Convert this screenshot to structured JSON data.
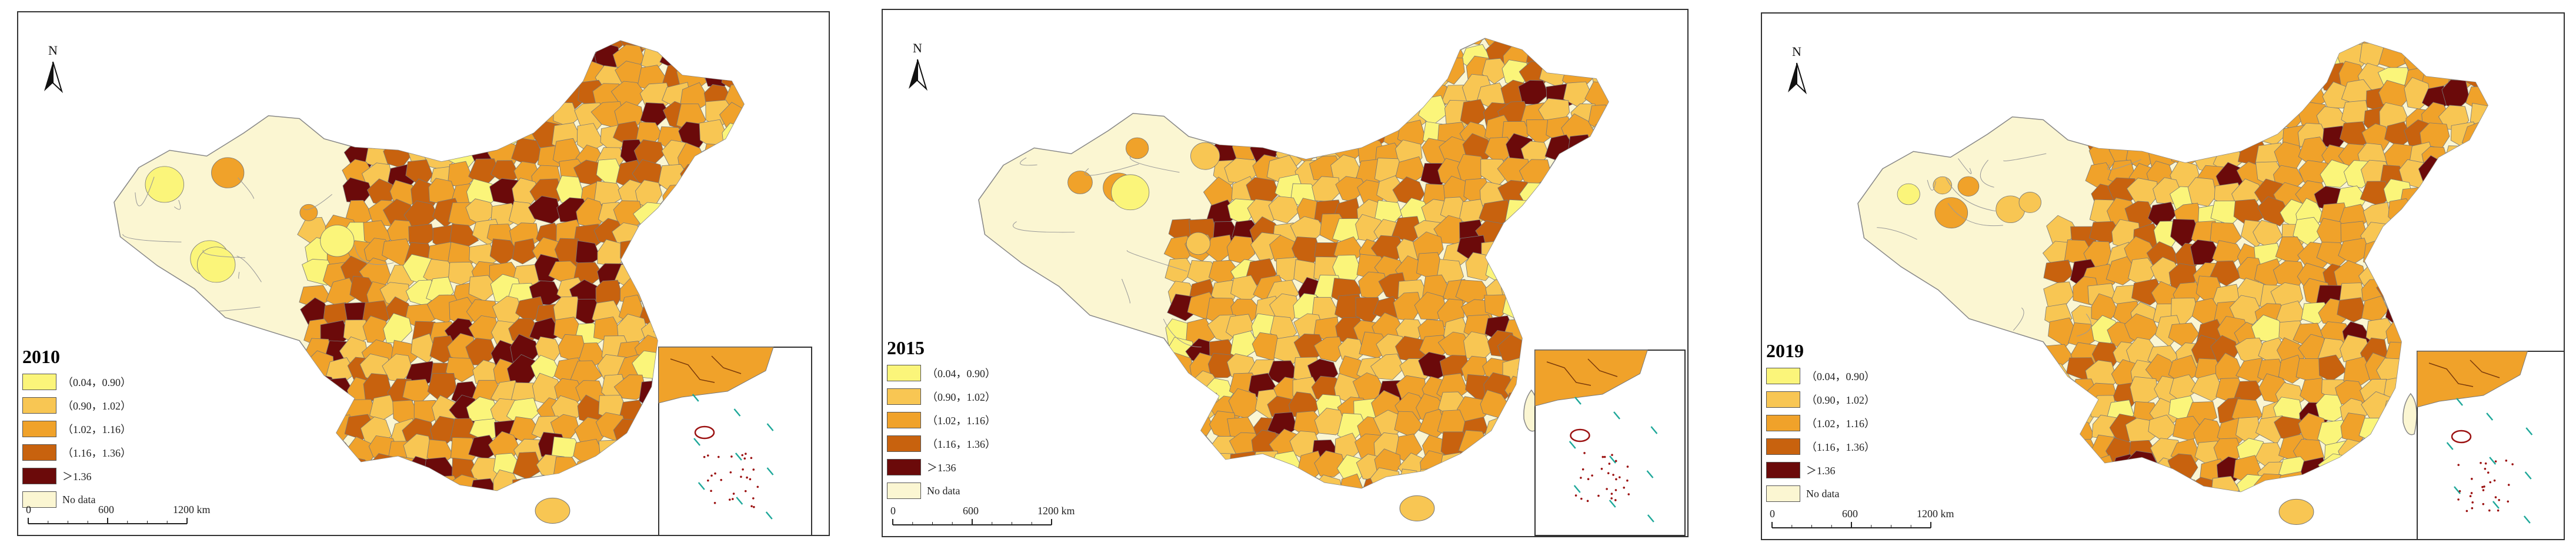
{
  "map_data": {
    "type": "choropleth-map-series",
    "legend": {
      "classes": [
        {
          "label": "（0.04，0.90）",
          "color": "#fbf57a"
        },
        {
          "label": "（0.90，1.02）",
          "color": "#f8c653"
        },
        {
          "label": "（1.02，1.16）",
          "color": "#f0a22a"
        },
        {
          "label": "（1.16，1.36）",
          "color": "#c8620e"
        },
        {
          "label": "＞1.36",
          "color": "#6b0a0a"
        }
      ],
      "no_data": {
        "label": "No data",
        "color": "#fbf6d2"
      }
    },
    "scale_bar": {
      "ticks": [
        "0",
        "600",
        "1200 km"
      ]
    },
    "north_arrow": "N",
    "maps": [
      {
        "year": "2010"
      },
      {
        "year": "2015"
      },
      {
        "year": "2019"
      }
    ]
  }
}
